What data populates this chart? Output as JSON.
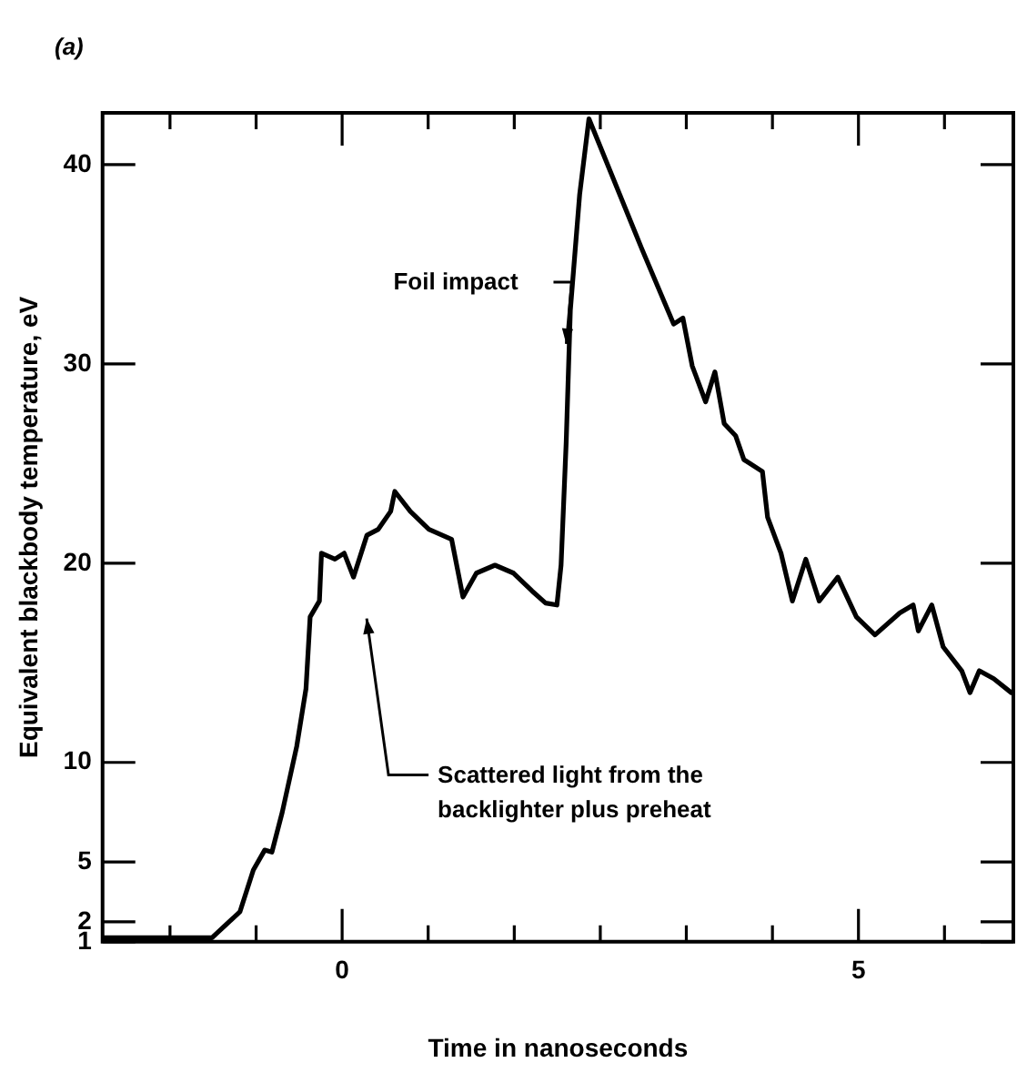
{
  "chart_data": {
    "type": "line",
    "title": "(a)",
    "xlabel": "Time in nanoseconds",
    "ylabel": "Equivalent blackbody temperature, eV",
    "xlim": [
      -2.32,
      6.5
    ],
    "ylim": [
      1,
      42.6
    ],
    "xticks": [
      {
        "value": -1.667,
        "label": null
      },
      {
        "value": -0.833,
        "label": null
      },
      0,
      {
        "value": 0.833,
        "label": null
      },
      {
        "value": 1.667,
        "label": null
      },
      {
        "value": 2.5,
        "label": null
      },
      {
        "value": 3.333,
        "label": null
      },
      {
        "value": 4.167,
        "label": null
      },
      5,
      {
        "value": 5.833,
        "label": null
      }
    ],
    "yticks": [
      1,
      2,
      5,
      10,
      20,
      30,
      40
    ],
    "grid": false,
    "legend": false,
    "marker": "none",
    "line_style": "solid",
    "series": [
      {
        "color": "#000000",
        "x": [
          -2.32,
          -1.26,
          -1.22,
          -0.99,
          -0.86,
          -0.75,
          -0.68,
          -0.58,
          -0.44,
          -0.35,
          -0.31,
          -0.22,
          -0.2,
          -0.07,
          0.02,
          0.11,
          0.24,
          0.35,
          0.47,
          0.51,
          0.66,
          0.84,
          1.06,
          1.17,
          1.3,
          1.48,
          1.66,
          1.84,
          1.97,
          2.08,
          2.12,
          2.17,
          2.21,
          2.3,
          2.39,
          2.9,
          3.21,
          3.3,
          3.39,
          3.52,
          3.61,
          3.7,
          3.81,
          3.89,
          4.07,
          4.12,
          4.25,
          4.36,
          4.49,
          4.62,
          4.8,
          4.98,
          5.16,
          5.4,
          5.53,
          5.58,
          5.71,
          5.82,
          6.0,
          6.08,
          6.17,
          6.31,
          6.48
        ],
        "values": [
          1.2,
          1.2,
          1.4,
          2.5,
          4.6,
          5.6,
          5.5,
          7.5,
          10.8,
          13.7,
          17.3,
          18.1,
          20.5,
          20.2,
          20.5,
          19.3,
          21.4,
          21.7,
          22.6,
          23.6,
          22.6,
          21.7,
          21.2,
          18.3,
          19.5,
          19.9,
          19.5,
          18.6,
          18.0,
          17.9,
          19.9,
          26.1,
          32.7,
          38.5,
          42.3,
          35.8,
          32.0,
          32.3,
          29.9,
          28.1,
          29.6,
          27.0,
          26.4,
          25.2,
          24.6,
          22.3,
          20.5,
          18.1,
          20.2,
          18.1,
          19.3,
          17.3,
          16.4,
          17.5,
          17.9,
          16.6,
          17.9,
          15.8,
          14.6,
          13.5,
          14.6,
          14.2,
          13.5
        ]
      }
    ],
    "annotations": [
      {
        "text": "Foil impact",
        "x": 2.17,
        "y": 31
      },
      "Scattered light from the\nbacklighter plus preheat"
    ]
  }
}
